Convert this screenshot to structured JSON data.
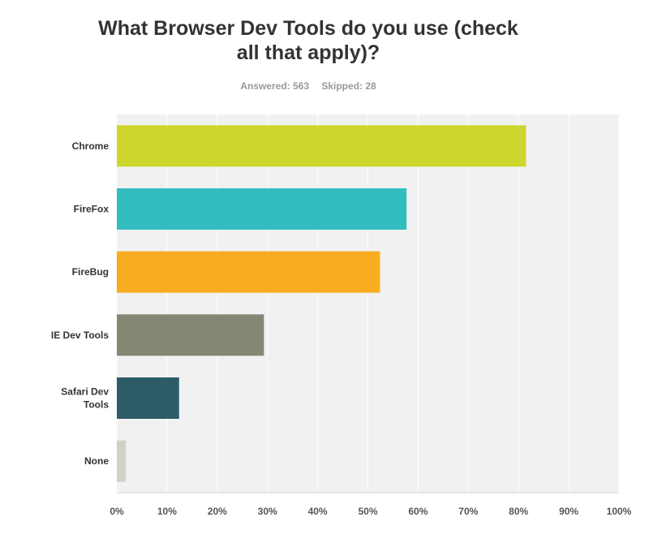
{
  "title_lines": [
    "What Browser Dev Tools do you use (check",
    "all that apply)?"
  ],
  "answered": "Answered: 563",
  "skipped": "Skipped: 28",
  "chart_data": {
    "type": "bar",
    "orientation": "horizontal",
    "categories": [
      "Chrome",
      "FireFox",
      "FireBug",
      "IE Dev Tools",
      "Safari Dev Tools",
      "None"
    ],
    "category_lines": [
      [
        "Chrome"
      ],
      [
        "FireFox"
      ],
      [
        "FireBug"
      ],
      [
        "IE Dev Tools"
      ],
      [
        "Safari Dev",
        "Tools"
      ],
      [
        "None"
      ]
    ],
    "values": [
      81.5,
      57.7,
      52.4,
      29.3,
      12.4,
      1.8
    ],
    "colors": [
      "#cdd62c",
      "#33bdbe",
      "#f7ad1f",
      "#868674",
      "#2d5b68",
      "#d0d2c5"
    ],
    "xlim": [
      0,
      100
    ],
    "x_ticks": [
      "0%",
      "10%",
      "20%",
      "30%",
      "40%",
      "50%",
      "60%",
      "70%",
      "80%",
      "90%",
      "100%"
    ],
    "grid": true,
    "plot_background": "#f1f1f1",
    "gridline_color": "#ffffff"
  }
}
